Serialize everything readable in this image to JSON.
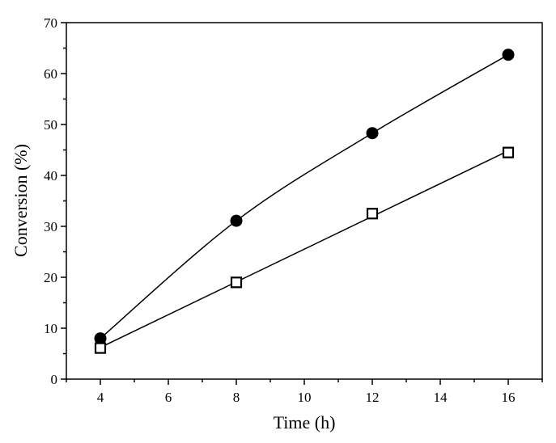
{
  "chart_data": {
    "type": "scatter",
    "title": "",
    "xlabel": "Time (h)",
    "ylabel": "Conversion (%)",
    "xlim": [
      3,
      17
    ],
    "ylim": [
      0,
      70
    ],
    "xticks": [
      "4",
      "6",
      "8",
      "10",
      "12",
      "14",
      "16"
    ],
    "yticks": [
      "0",
      "10",
      "20",
      "30",
      "40",
      "50",
      "60",
      "70"
    ],
    "grid": false,
    "legend": "none",
    "series": [
      {
        "marker": "filled-circle",
        "fit": "curve",
        "color": "#000000",
        "x": [
          4,
          8,
          12,
          16
        ],
        "y": [
          8.0,
          31.1,
          48.3,
          63.7
        ]
      },
      {
        "marker": "open-square",
        "fit": "linear",
        "color": "#000000",
        "x": [
          4,
          8,
          12,
          16
        ],
        "y": [
          6.1,
          19.0,
          32.5,
          44.5
        ]
      }
    ]
  }
}
